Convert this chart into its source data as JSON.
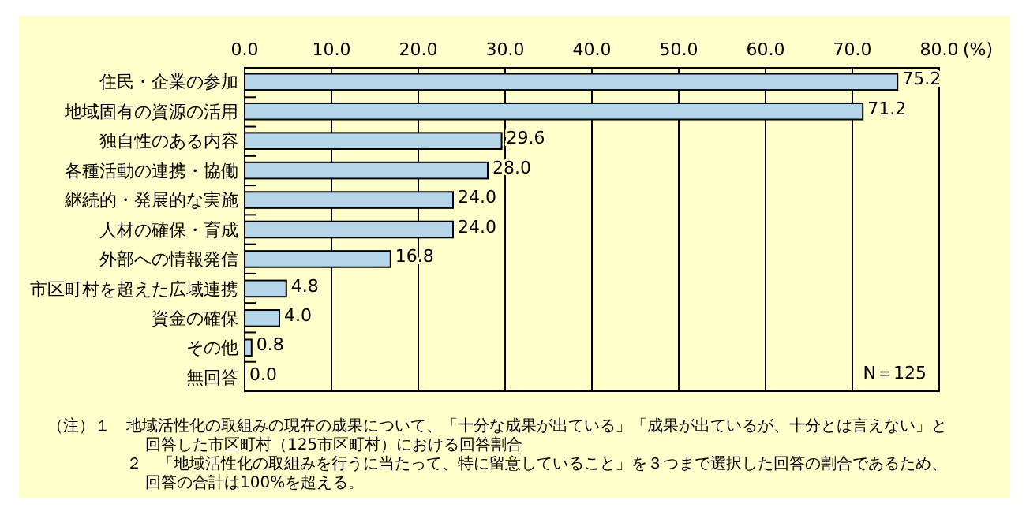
{
  "chart_data": {
    "type": "bar",
    "orientation": "horizontal",
    "xlabel": "(%)",
    "categories": [
      "住民・企業の参加",
      "地域固有の資源の活用",
      "独自性のある内容",
      "各種活動の連携・協働",
      "継続的・発展的な実施",
      "人材の確保・育成",
      "外部への情報発信",
      "市区町村を超えた広域連携",
      "資金の確保",
      "その他",
      "無回答"
    ],
    "values": [
      75.2,
      71.2,
      29.6,
      28.0,
      24.0,
      24.0,
      16.8,
      4.8,
      4.0,
      0.8,
      0.0
    ],
    "value_labels": [
      "75.2",
      "71.2",
      "29.6",
      "28.0",
      "24.0",
      "24.0",
      "16.8",
      "4.8",
      "4.0",
      "0.8",
      "0.0"
    ],
    "color": "#b4d6e8",
    "xlim": [
      0,
      80
    ],
    "xticks": [
      {
        "value": 0,
        "label": "0.0"
      },
      {
        "value": 10,
        "label": "10.0"
      },
      {
        "value": 20,
        "label": "20.0"
      },
      {
        "value": 30,
        "label": "30.0"
      },
      {
        "value": 40,
        "label": "40.0"
      },
      {
        "value": 50,
        "label": "50.0"
      },
      {
        "value": 60,
        "label": "60.0"
      },
      {
        "value": 70,
        "label": "70.0"
      },
      {
        "value": 80,
        "label": "80.0"
      }
    ],
    "grid": "x",
    "annotations": [
      "N＝125",
      "（注）１　地域活性化の取組みの現在の成果について、「十分な成果が出ている」「成果が出ているが、十分とは言えない」と回答した市区町村（125市区町村）における回答割合",
      "２　「地域活性化の取組みを行うに当たって、特に留意していること」を３つまで選択した回答の割合であるため、回答の合計は100%を超える。"
    ]
  }
}
